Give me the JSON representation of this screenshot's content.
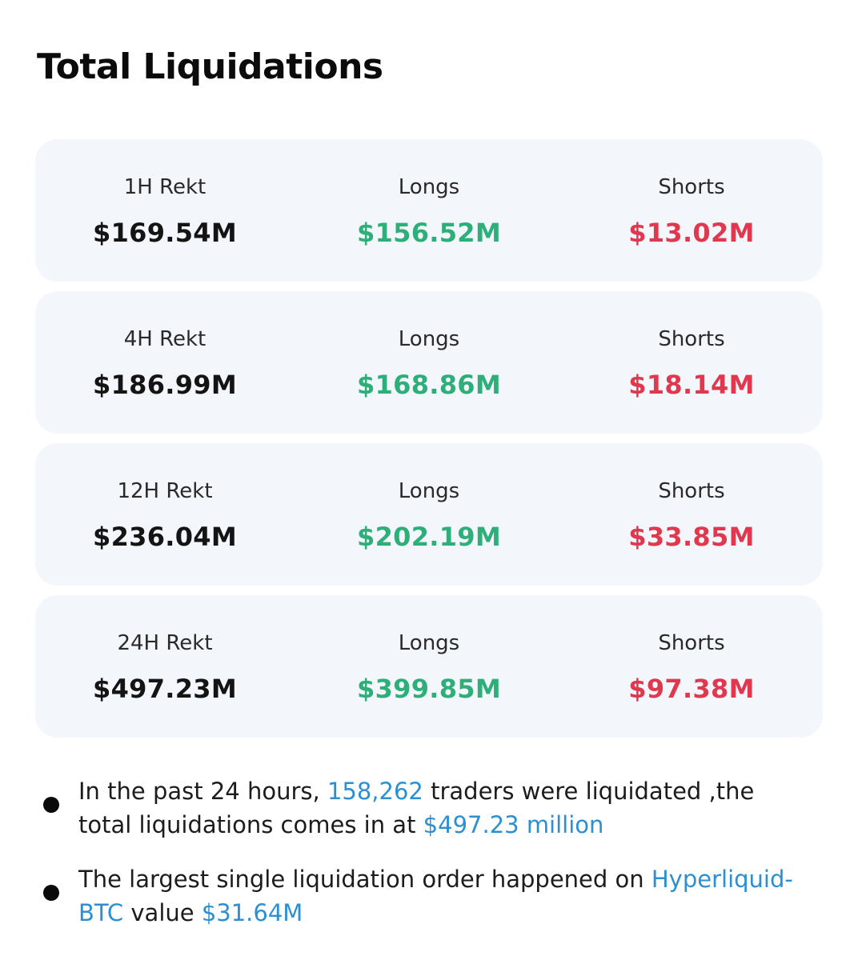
{
  "title": "Total Liquidations",
  "cards": [
    {
      "period_label": "1H Rekt",
      "total": "$169.54M",
      "longs_label": "Longs",
      "longs": "$156.52M",
      "shorts_label": "Shorts",
      "shorts": "$13.02M"
    },
    {
      "period_label": "4H Rekt",
      "total": "$186.99M",
      "longs_label": "Longs",
      "longs": "$168.86M",
      "shorts_label": "Shorts",
      "shorts": "$18.14M"
    },
    {
      "period_label": "12H Rekt",
      "total": "$236.04M",
      "longs_label": "Longs",
      "longs": "$202.19M",
      "shorts_label": "Shorts",
      "shorts": "$33.85M"
    },
    {
      "period_label": "24H Rekt",
      "total": "$497.23M",
      "longs_label": "Longs",
      "longs": "$399.85M",
      "shorts_label": "Shorts",
      "shorts": "$97.38M"
    }
  ],
  "notes": [
    {
      "text_1": "In the past 24 hours, ",
      "highlight_1": "158,262",
      "text_2": " traders were liquidated ,the total liquidations comes in at ",
      "highlight_2": "$497.23 million"
    },
    {
      "text_1": "The largest single liquidation order happened on ",
      "highlight_1": "Hyperliquid-BTC",
      "text_2": " value ",
      "highlight_2": "$31.64M"
    }
  ],
  "colors": {
    "longs": "#2eae78",
    "shorts": "#e0384f",
    "highlight": "#2b8fd4",
    "card_bg": "#f3f6fa"
  }
}
